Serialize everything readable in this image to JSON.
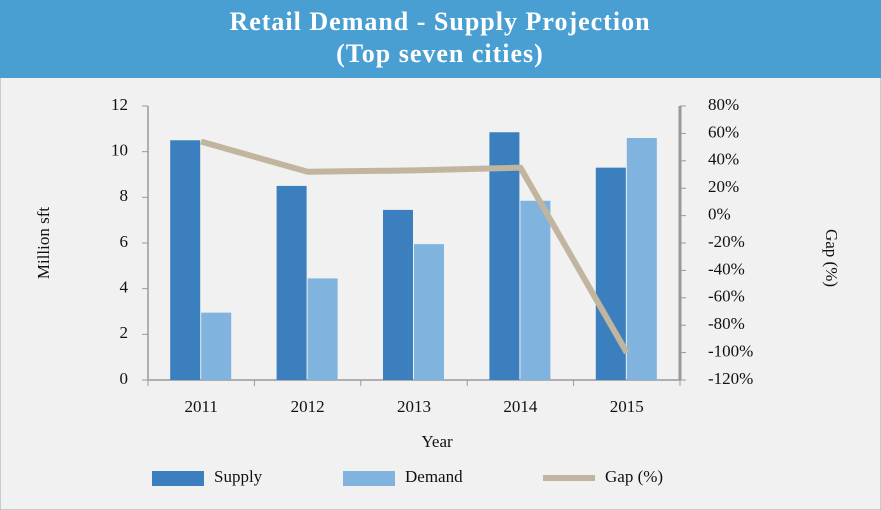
{
  "chart_data": {
    "type": "bar",
    "title": "Retail Demand - Supply Projection",
    "subtitle": "(Top seven cities)",
    "x_label": "Year",
    "y_label": "Million sft",
    "y2_label": "Gap (%)",
    "categories": [
      "2011",
      "2012",
      "2013",
      "2014",
      "2015"
    ],
    "series": [
      {
        "name": "Supply",
        "color": "#3b7fbf",
        "type": "bar",
        "values": [
          10.5,
          8.5,
          7.45,
          10.85,
          9.3
        ]
      },
      {
        "name": "Demand",
        "color": "#80b3dd",
        "type": "bar",
        "values": [
          2.95,
          4.45,
          5.95,
          7.85,
          10.6
        ]
      },
      {
        "name": "Gap (%)",
        "color": "#c2b59f",
        "type": "line",
        "axis": "y2",
        "values": [
          54,
          32,
          33,
          35,
          -100
        ]
      }
    ],
    "ylim": [
      0,
      12
    ],
    "yticks": [
      0,
      2,
      4,
      6,
      8,
      10,
      12
    ],
    "y2lim": [
      -120,
      80
    ],
    "y2ticks": [
      {
        "value": 80,
        "label": "80%"
      },
      {
        "value": 60,
        "label": "60%"
      },
      {
        "value": 40,
        "label": "40%"
      },
      {
        "value": 20,
        "label": "20%"
      },
      {
        "value": 0,
        "label": "0%"
      },
      {
        "value": -20,
        "label": "-20%"
      },
      {
        "value": -40,
        "label": "-40%"
      },
      {
        "value": -60,
        "label": "-60%"
      },
      {
        "value": -80,
        "label": "-80%"
      },
      {
        "value": -100,
        "label": "-100%"
      },
      {
        "value": -120,
        "label": "-120%"
      }
    ],
    "grid": false,
    "legend": "bottom"
  }
}
